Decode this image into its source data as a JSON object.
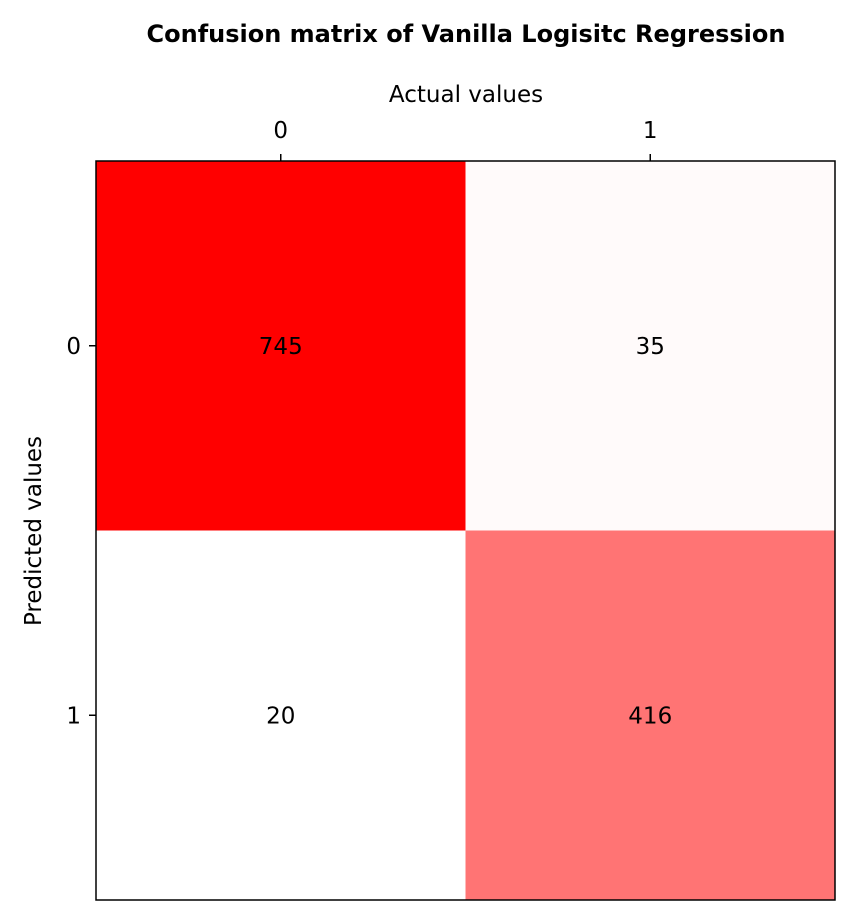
{
  "chart_data": {
    "type": "heatmap",
    "title": "Confusion matrix of Vanilla Logisitc Regression",
    "xlabel": "Actual values",
    "ylabel": "Predicted values",
    "x_categories": [
      "0",
      "1"
    ],
    "y_categories": [
      "0",
      "1"
    ],
    "values": [
      [
        745,
        35
      ],
      [
        20,
        416
      ]
    ],
    "x_axis_position": "top",
    "colormap": "white-to-red",
    "color_min": "#ffffff",
    "color_max": "#ff0000",
    "grid": false
  }
}
